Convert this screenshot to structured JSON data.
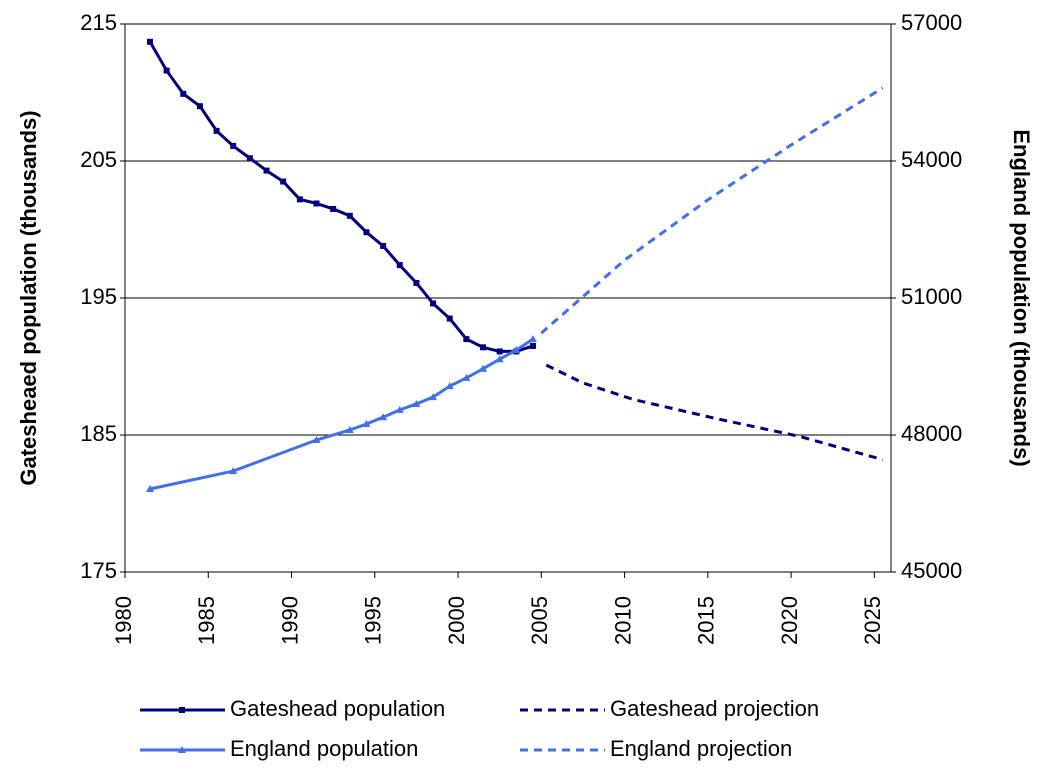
{
  "chart_data": {
    "type": "line",
    "y_label": "Gatesheaed population (thousands)",
    "y2_label": "England population (thousands)",
    "xlim": [
      1980,
      2026
    ],
    "xticks": [
      1980,
      1985,
      1990,
      1995,
      2000,
      2005,
      2010,
      2015,
      2020,
      2025
    ],
    "ylim": [
      175,
      215
    ],
    "yticks": [
      175,
      185,
      195,
      205,
      215
    ],
    "y2lim": [
      45000,
      57000
    ],
    "y2ticks": [
      45000,
      48000,
      51000,
      54000,
      57000
    ],
    "grid": true,
    "series": [
      {
        "name": "Gateshead population",
        "color": "#000080",
        "marker": "square",
        "dashed": false,
        "x": [
          1981.5,
          1982.5,
          1983.5,
          1984.5,
          1985.5,
          1986.5,
          1987.5,
          1988.5,
          1989.5,
          1990.5,
          1991.5,
          1992.5,
          1993.5,
          1994.5,
          1995.5,
          1996.5,
          1997.5,
          1998.5,
          1999.5,
          2000.5,
          2001.5,
          2002.5,
          2003.5,
          2004.5
        ],
        "values": [
          213.7,
          211.6,
          209.9,
          209.0,
          207.2,
          206.1,
          205.2,
          204.3,
          203.5,
          202.2,
          201.9,
          201.5,
          201.0,
          199.8,
          198.8,
          197.4,
          196.1,
          194.6,
          193.5,
          192.0,
          191.4,
          191.1,
          191.1,
          191.5
        ]
      },
      {
        "name": "Gateshead projection",
        "color": "#000080",
        "marker": "none",
        "dashed": true,
        "x": [
          2005.3,
          2007.5,
          2010.5,
          2015.5,
          2020.5,
          2025.5
        ],
        "values": [
          190.1,
          188.8,
          187.6,
          186.2,
          184.9,
          183.2
        ]
      },
      {
        "name": "England population",
        "color": "#3f6fea",
        "marker": "triangle",
        "dashed": false,
        "axis": "y2",
        "x": [
          1981.5,
          1986.5,
          1991.5,
          1993.5,
          1994.5,
          1995.5,
          1996.5,
          1997.5,
          1998.5,
          1999.5,
          2000.5,
          2001.5,
          2002.5,
          2003.5,
          2004.5
        ],
        "values": [
          46817,
          47210,
          47890,
          48110,
          48240,
          48390,
          48550,
          48680,
          48830,
          49070,
          49250,
          49450,
          49660,
          49860,
          50100
        ]
      },
      {
        "name": "England projection",
        "color": "#3f6fea",
        "marker": "none",
        "dashed": true,
        "axis": "y2",
        "x": [
          2005,
          2010,
          2015,
          2020,
          2025.5
        ],
        "values": [
          50230,
          51830,
          53150,
          54350,
          55600
        ]
      }
    ]
  }
}
